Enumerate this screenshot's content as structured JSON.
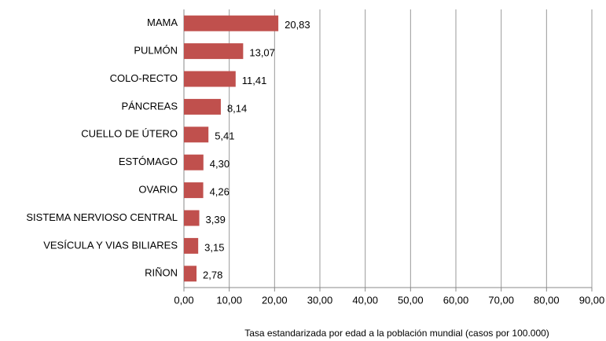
{
  "chart_data": {
    "type": "barh",
    "categories": [
      "MAMA",
      "PULMÓN",
      "COLO-RECTO",
      "PÁNCREAS",
      "CUELLO DE ÚTERO",
      "ESTÓMAGO",
      "OVARIO",
      "SISTEMA NERVIOSO CENTRAL",
      "VESÍCULA Y VIAS BILIARES",
      "RIÑON"
    ],
    "values": [
      20.83,
      13.07,
      11.41,
      8.14,
      5.41,
      4.3,
      4.26,
      3.39,
      3.15,
      2.78
    ],
    "value_labels": [
      "20,83",
      "13,07",
      "11,41",
      "8,14",
      "5,41",
      "4,30",
      "4,26",
      "3,39",
      "3,15",
      "2,78"
    ],
    "color": "#c0504d",
    "xlim": [
      0,
      90
    ],
    "xticks": [
      {
        "value": 0,
        "label": "0,00"
      },
      {
        "value": 10,
        "label": "10,00"
      },
      {
        "value": 20,
        "label": "20,00"
      },
      {
        "value": 30,
        "label": "30,00"
      },
      {
        "value": 40,
        "label": "40,00"
      },
      {
        "value": 50,
        "label": "50,00"
      },
      {
        "value": 60,
        "label": "60,00"
      },
      {
        "value": 70,
        "label": "70,00"
      },
      {
        "value": 80,
        "label": "80,00"
      },
      {
        "value": 90,
        "label": "90,00"
      }
    ],
    "grid": true,
    "x_label": "Tasa estandarizada por edad a la población mundial (casos por 100.000)"
  }
}
